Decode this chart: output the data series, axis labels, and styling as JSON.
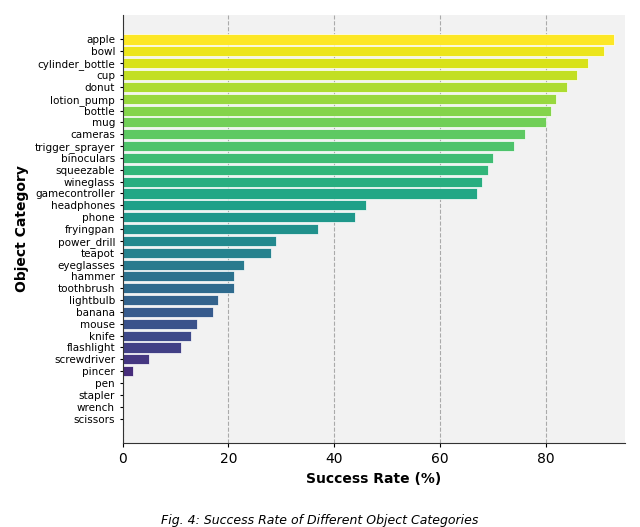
{
  "categories": [
    "apple",
    "bowl",
    "cylinder_bottle",
    "cup",
    "donut",
    "lotion_pump",
    "bottle",
    "mug",
    "cameras",
    "trigger_sprayer",
    "binoculars",
    "squeezable",
    "wineglass",
    "gamecontroller",
    "headphones",
    "phone",
    "fryingpan",
    "power_drill",
    "teapot",
    "eyeglasses",
    "hammer",
    "toothbrush",
    "lightbulb",
    "banana",
    "mouse",
    "knife",
    "flashlight",
    "screwdriver",
    "pincer",
    "pen",
    "stapler",
    "wrench",
    "scissors"
  ],
  "values": [
    93,
    91,
    88,
    86,
    84,
    82,
    81,
    80,
    76,
    74,
    70,
    69,
    68,
    67,
    46,
    44,
    37,
    29,
    28,
    23,
    21,
    21,
    18,
    17,
    14,
    13,
    11,
    5,
    2,
    0,
    0,
    0,
    0
  ],
  "xlabel": "Success Rate (%)",
  "ylabel": "Object Category",
  "xlim": [
    0,
    95
  ],
  "xticks": [
    0,
    20,
    40,
    60,
    80
  ],
  "grid_color": "#aaaaaa",
  "bg_color": "#f2f2f2",
  "fig_color": "#ffffff",
  "caption": "Fig. 4: Success Rate of Different Object Categories"
}
